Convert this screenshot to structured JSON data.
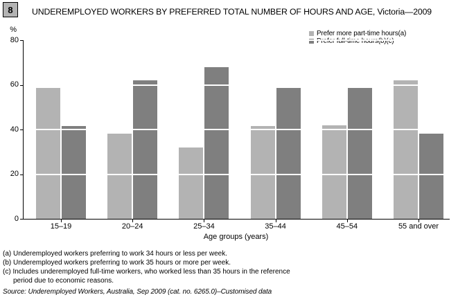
{
  "figure_number": "8",
  "title": "UNDEREMPLOYED WORKERS BY PREFERRED TOTAL NUMBER OF HOURS AND AGE, Victoria—2009",
  "chart_data": {
    "type": "bar",
    "categories": [
      "15–19",
      "20–24",
      "25–34",
      "35–44",
      "45–54",
      "55 and over"
    ],
    "series": [
      {
        "name": "Prefer more part-time hours(a)",
        "color": "#b3b3b3",
        "values": [
          58.5,
          38,
          32,
          41.5,
          42,
          62
        ]
      },
      {
        "name": "Prefer full-time hours(b)(c)",
        "color": "#7f7f7f",
        "values": [
          41.5,
          62,
          68,
          58.5,
          58.5,
          38
        ]
      }
    ],
    "title": "UNDEREMPLOYED WORKERS BY PREFERRED TOTAL NUMBER OF HOURS AND AGE, Victoria—2009",
    "xlabel": "Age groups (years)",
    "ylabel": "%",
    "ylim": [
      0,
      80
    ],
    "yticks": [
      0,
      20,
      40,
      60,
      80
    ],
    "grid": "white gridlines over bars at 20-unit intervals",
    "legend_position": "top-right"
  },
  "footnotes": [
    {
      "text": "(a) Underemployed workers preferring to work 34 hours or less per week."
    },
    {
      "text": "(b) Underemployed workers preferring to work 35 hours or more per week."
    },
    {
      "text": "(c) Includes underemployed full-time workers, who worked less than 35 hours in the reference period due to economic reasons."
    }
  ],
  "source": "Source: Underemployed Workers, Australia, Sep 2009 (cat. no. 6265.0)–Customised data"
}
